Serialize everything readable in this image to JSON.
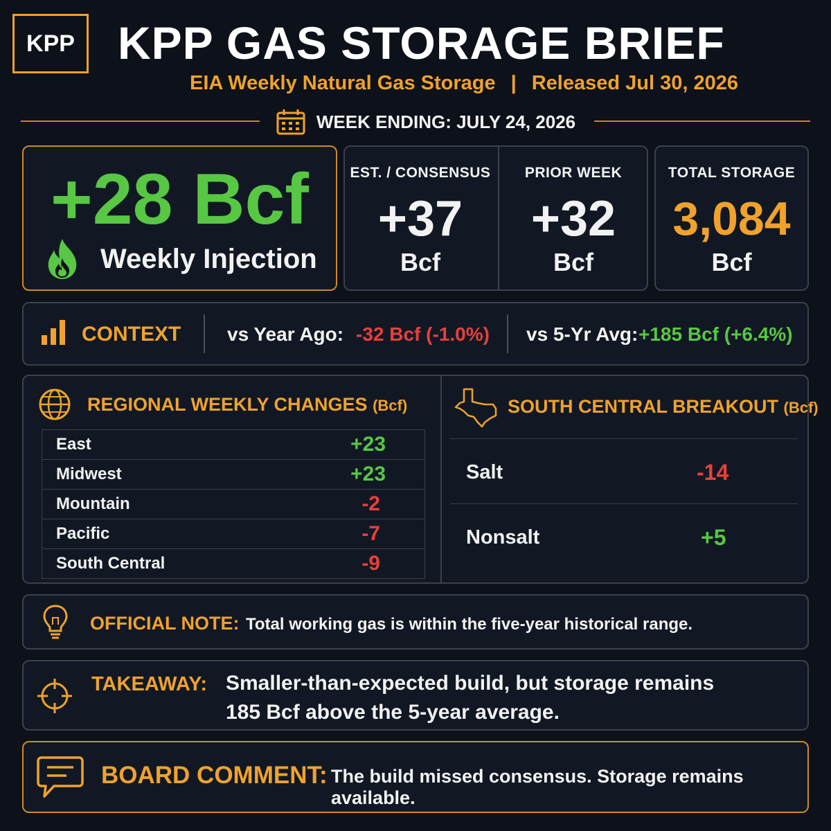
{
  "header": {
    "logo": "KPP",
    "title": "KPP GAS STORAGE BRIEF",
    "subtitle_left": "EIA Weekly Natural Gas Storage",
    "subtitle_sep": "|",
    "subtitle_right": "Released Jul 30, 2026",
    "week_ending": "WEEK ENDING: JULY 24, 2026"
  },
  "headline": {
    "value": "+28 Bcf",
    "label": "Weekly Injection"
  },
  "stats": {
    "consensus": {
      "label": "EST. / CONSENSUS",
      "value": "+37",
      "unit": "Bcf"
    },
    "prior": {
      "label": "PRIOR WEEK",
      "value": "+32",
      "unit": "Bcf"
    },
    "total": {
      "label": "TOTAL STORAGE",
      "value": "3,084",
      "unit": "Bcf"
    }
  },
  "context": {
    "title": "CONTEXT",
    "year_ago_label": "vs Year Ago:",
    "year_ago_value": "-32 Bcf (-1.0%)",
    "five_yr_label": "vs 5-Yr Avg:",
    "five_yr_value": "+185 Bcf (+6.4%)"
  },
  "regional": {
    "title": "REGIONAL WEEKLY CHANGES",
    "unit": "(Bcf)",
    "rows": [
      {
        "name": "East",
        "value": "+23"
      },
      {
        "name": "Midwest",
        "value": "+23"
      },
      {
        "name": "Mountain",
        "value": "-2"
      },
      {
        "name": "Pacific",
        "value": "-7"
      },
      {
        "name": "South Central",
        "value": "-9"
      }
    ]
  },
  "south_central": {
    "title": "SOUTH CENTRAL BREAKOUT",
    "unit": "(Bcf)",
    "rows": [
      {
        "name": "Salt",
        "value": "-14"
      },
      {
        "name": "Nonsalt",
        "value": "+5"
      }
    ]
  },
  "note": {
    "label": "OFFICIAL NOTE:",
    "text": "Total working gas is within the five-year historical range."
  },
  "takeaway": {
    "label": "TAKEAWAY:",
    "line1": "Smaller-than-expected build, but storage remains",
    "line2": "185 Bcf above the 5-year average."
  },
  "board": {
    "label": "BOARD COMMENT:",
    "text": "The build missed consensus. Storage remains available."
  },
  "colors": {
    "accent": "#f0a22c",
    "positive": "#58c744",
    "negative": "#e8403a",
    "background": "#0d1119"
  },
  "icons": [
    "calendar-icon",
    "flame-icon",
    "bar-chart-icon",
    "globe-icon",
    "texas-map-icon",
    "lightbulb-icon",
    "crosshair-icon",
    "chat-bubble-icon"
  ]
}
